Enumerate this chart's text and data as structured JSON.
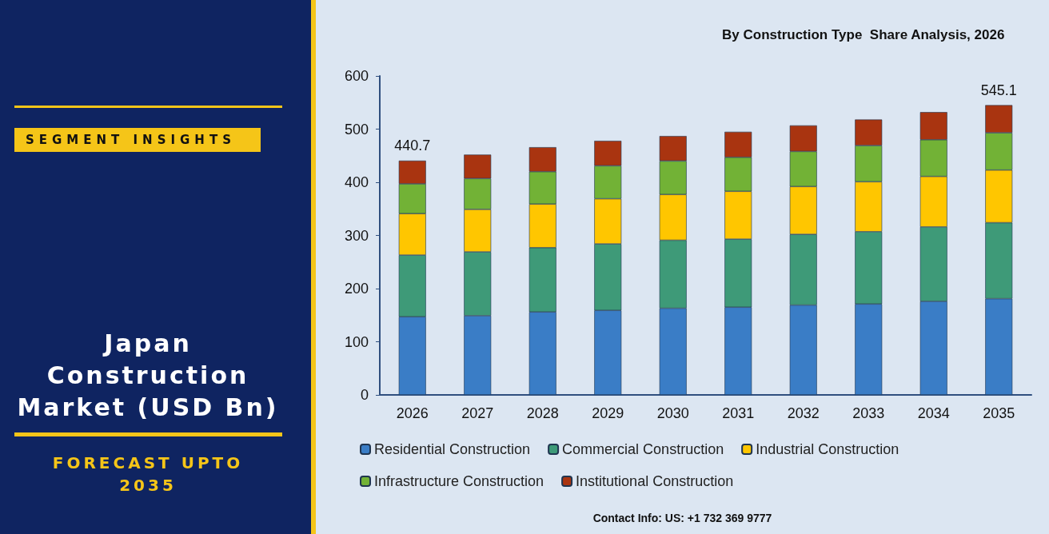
{
  "chart_data": {
    "type": "bar",
    "title": "Japan Construction Market (USD Bn)",
    "subtitle": "By Construction Type  Share Analysis, 2026",
    "annotations": [
      "SEGMENT INSIGHTS",
      "FORECAST UPTO 2035",
      "Contact Info: US: +1 732 369 9777"
    ],
    "categories": [
      "2026",
      "2027",
      "2028",
      "2029",
      "2030",
      "2031",
      "2032",
      "2033",
      "2034",
      "2035"
    ],
    "stacked": true,
    "series": [
      {
        "name": "Residential Construction",
        "color": "#3a7dc6",
        "values": [
          147,
          149,
          156,
          159,
          163,
          165,
          169,
          171,
          176,
          181
        ]
      },
      {
        "name": "Commercial Construction",
        "color": "#3e9a78",
        "values": [
          116,
          120,
          121,
          125,
          128,
          128,
          133,
          136,
          140,
          143
        ]
      },
      {
        "name": "Industrial Construction",
        "color": "#ffc600",
        "values": [
          78,
          80,
          82,
          85,
          86,
          90,
          90,
          94,
          95,
          99
        ]
      },
      {
        "name": "Infrastructure Construction",
        "color": "#72b236",
        "values": [
          56,
          58,
          61,
          62,
          63,
          64,
          66,
          68,
          69,
          70
        ]
      },
      {
        "name": "Institutional Construction",
        "color": "#a93410",
        "values": [
          43.7,
          45,
          46,
          47,
          47,
          48,
          49,
          49,
          52,
          52.1
        ]
      }
    ],
    "totals": [
      "440.7",
      null,
      null,
      null,
      null,
      null,
      null,
      null,
      null,
      "545.1"
    ],
    "ylim": [
      0,
      600
    ],
    "yticks": [
      0,
      100,
      200,
      300,
      400,
      500,
      600
    ],
    "grid": false,
    "legend": "bottom"
  }
}
